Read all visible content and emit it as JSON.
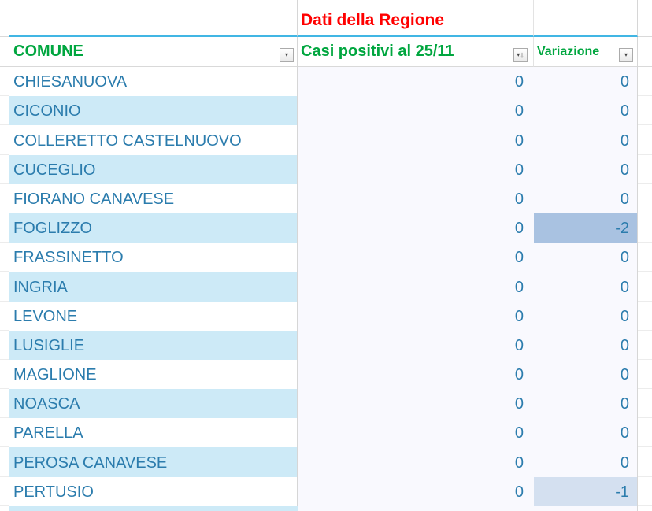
{
  "banner": {
    "title": "Dati della Regione",
    "color": "#ff0000"
  },
  "header": {
    "comune": "COMUNE",
    "casi": "Casi positivi al 25/11",
    "variazione": "Variazione",
    "text_color": "#00a63f"
  },
  "icons": {
    "filter_dropdown": "▾",
    "sort_descending": "↓"
  },
  "colors": {
    "row_alt": "#cdeaf7",
    "values_bg": "#f9f9fe",
    "cell_text": "#2b7cad",
    "banner_underline": "#41b6e4",
    "highlight_strong": "#a9c2e1",
    "highlight_light": "#d4e0f0"
  },
  "rows": [
    {
      "comune": "CHIESANUOVA",
      "casi": "0",
      "variazione": "0",
      "highlight": ""
    },
    {
      "comune": "CICONIO",
      "casi": "0",
      "variazione": "0",
      "highlight": ""
    },
    {
      "comune": "COLLERETTO CASTELNUOVO",
      "casi": "0",
      "variazione": "0",
      "highlight": ""
    },
    {
      "comune": "CUCEGLIO",
      "casi": "0",
      "variazione": "0",
      "highlight": ""
    },
    {
      "comune": "FIORANO CANAVESE",
      "casi": "0",
      "variazione": "0",
      "highlight": ""
    },
    {
      "comune": "FOGLIZZO",
      "casi": "0",
      "variazione": "-2",
      "highlight": "#a9c2e1"
    },
    {
      "comune": "FRASSINETTO",
      "casi": "0",
      "variazione": "0",
      "highlight": ""
    },
    {
      "comune": "INGRIA",
      "casi": "0",
      "variazione": "0",
      "highlight": ""
    },
    {
      "comune": "LEVONE",
      "casi": "0",
      "variazione": "0",
      "highlight": ""
    },
    {
      "comune": "LUSIGLIE",
      "casi": "0",
      "variazione": "0",
      "highlight": ""
    },
    {
      "comune": "MAGLIONE",
      "casi": "0",
      "variazione": "0",
      "highlight": ""
    },
    {
      "comune": "NOASCA",
      "casi": "0",
      "variazione": "0",
      "highlight": ""
    },
    {
      "comune": "PARELLA",
      "casi": "0",
      "variazione": "0",
      "highlight": ""
    },
    {
      "comune": "PEROSA CANAVESE",
      "casi": "0",
      "variazione": "0",
      "highlight": ""
    },
    {
      "comune": "PERTUSIO",
      "casi": "0",
      "variazione": "-1",
      "highlight": "#d4e0f0"
    }
  ]
}
